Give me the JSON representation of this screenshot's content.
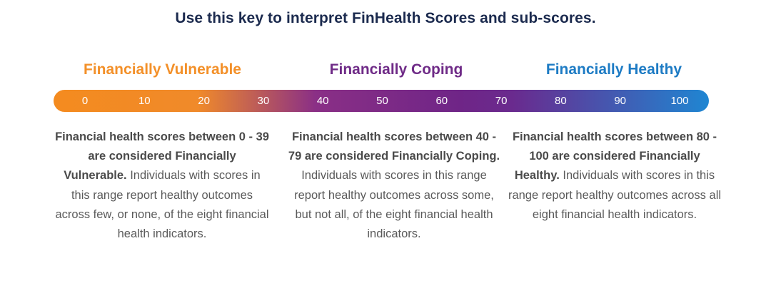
{
  "heading": "Use this key to interpret FinHealth Scores and sub-scores.",
  "categories": [
    {
      "title": "Financially Vulnerable",
      "color": "#f39029",
      "desc_bold": "Financial health scores between 0 - 39 are considered Financially Vulnerable.",
      "desc_rest": " Individuals with scores in this range report healthy outcomes across few, or none, of the eight financial health indicators."
    },
    {
      "title": "Financially Coping",
      "color": "#6f2b87",
      "desc_bold": "Financial health scores between 40 - 79 are considered Financially Coping.",
      "desc_rest": " Individuals with scores in this range report healthy outcomes across some, but not all, of the eight financial health indicators."
    },
    {
      "title": "Financially Healthy",
      "color": "#1d7bc4",
      "desc_bold": "Financial health scores between 80 - 100 are considered Financially Healthy.",
      "desc_rest": " Individuals with scores in this range report healthy outcomes across all eight financial health indicators."
    }
  ],
  "scale": {
    "ticks": [
      "0",
      "10",
      "20",
      "30",
      "40",
      "50",
      "60",
      "70",
      "80",
      "90",
      "100"
    ],
    "gradient_colors": [
      "#f48b1f",
      "#f08a2a",
      "#8a2f86",
      "#6f2587",
      "#6a2a8e",
      "#1f86d2"
    ]
  }
}
